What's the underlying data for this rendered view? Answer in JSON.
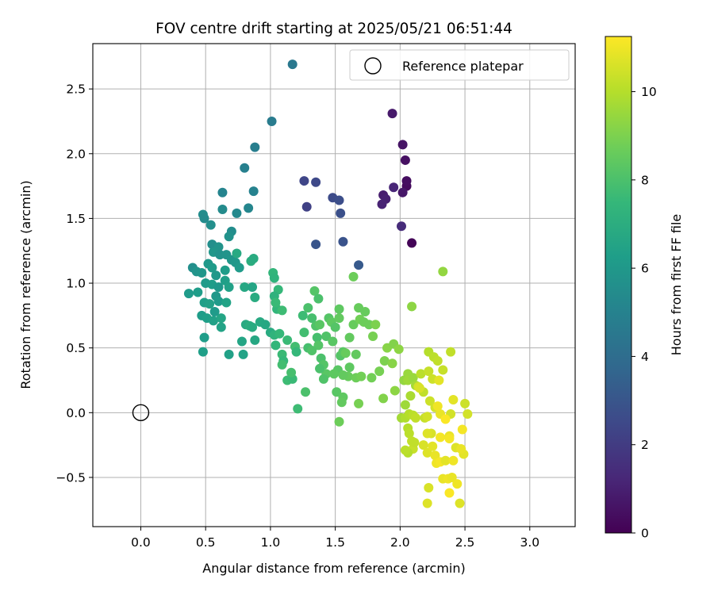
{
  "chart_data": {
    "type": "scatter",
    "title": "FOV centre drift starting at 2025/05/21 06:51:44",
    "xlabel": "Angular distance from reference (arcmin)",
    "ylabel": "Rotation from reference (arcmin)",
    "xlim": [
      -0.37,
      3.35
    ],
    "ylim": [
      -0.88,
      2.85
    ],
    "xticks": [
      0.0,
      0.5,
      1.0,
      1.5,
      2.0,
      2.5,
      3.0
    ],
    "xtick_labels": [
      "0.0",
      "0.5",
      "1.0",
      "1.5",
      "2.0",
      "2.5",
      "3.0"
    ],
    "yticks": [
      -0.5,
      0.0,
      0.5,
      1.0,
      1.5,
      2.0,
      2.5
    ],
    "ytick_labels": [
      "−0.5",
      "0.0",
      "0.5",
      "1.0",
      "1.5",
      "2.0",
      "2.5"
    ],
    "grid": true,
    "legend": {
      "placement": "top-right",
      "entries": [
        "Reference platepar"
      ]
    },
    "reference_point": {
      "x": 0.0,
      "y": 0.0,
      "label": "Reference platepar"
    },
    "colorbar": {
      "label": "Hours from first FF file",
      "range": [
        0,
        11.25
      ],
      "ticks": [
        0,
        2,
        4,
        6,
        8,
        10
      ],
      "tick_labels": [
        "0",
        "2",
        "4",
        "6",
        "8",
        "10"
      ],
      "colormap": "viridis"
    },
    "colormap_stops": [
      "#440154",
      "#482878",
      "#3e4989",
      "#31688e",
      "#26828e",
      "#1f9e89",
      "#35b779",
      "#6ece58",
      "#b5de2b",
      "#fde725"
    ],
    "points": [
      [
        2.09,
        1.31,
        0.1
      ],
      [
        2.05,
        1.75,
        0.3
      ],
      [
        2.05,
        1.79,
        0.4
      ],
      [
        2.04,
        1.95,
        0.5
      ],
      [
        2.02,
        2.07,
        0.6
      ],
      [
        2.02,
        1.7,
        0.7
      ],
      [
        1.94,
        2.31,
        0.8
      ],
      [
        1.87,
        1.68,
        0.9
      ],
      [
        1.89,
        1.65,
        1.0
      ],
      [
        1.86,
        1.61,
        1.1
      ],
      [
        1.95,
        1.74,
        1.2
      ],
      [
        2.01,
        1.44,
        1.4
      ],
      [
        1.28,
        1.59,
        2.2
      ],
      [
        1.26,
        1.79,
        2.4
      ],
      [
        1.35,
        1.78,
        2.5
      ],
      [
        1.48,
        1.66,
        2.6
      ],
      [
        1.53,
        1.64,
        2.7
      ],
      [
        1.54,
        1.54,
        2.8
      ],
      [
        1.56,
        1.32,
        2.9
      ],
      [
        1.35,
        1.3,
        3.0
      ],
      [
        1.68,
        1.14,
        3.2
      ],
      [
        1.17,
        2.69,
        4.5
      ],
      [
        1.01,
        2.25,
        4.7
      ],
      [
        0.88,
        2.05,
        4.8
      ],
      [
        0.8,
        1.89,
        4.9
      ],
      [
        0.87,
        1.71,
        5.0
      ],
      [
        0.63,
        1.7,
        5.1
      ],
      [
        0.83,
        1.58,
        5.2
      ],
      [
        0.74,
        1.54,
        5.3
      ],
      [
        0.63,
        1.57,
        5.4
      ],
      [
        0.48,
        1.53,
        5.5
      ],
      [
        0.49,
        1.5,
        5.4
      ],
      [
        0.54,
        1.45,
        5.6
      ],
      [
        0.7,
        1.4,
        5.5
      ],
      [
        0.68,
        1.36,
        5.7
      ],
      [
        0.55,
        1.3,
        5.6
      ],
      [
        0.6,
        1.28,
        5.8
      ],
      [
        0.56,
        1.24,
        5.9
      ],
      [
        0.61,
        1.22,
        5.7
      ],
      [
        0.66,
        1.22,
        5.8
      ],
      [
        0.4,
        1.12,
        5.6
      ],
      [
        0.43,
        1.09,
        5.8
      ],
      [
        0.47,
        1.08,
        5.9
      ],
      [
        0.52,
        1.15,
        6.0
      ],
      [
        0.55,
        1.12,
        6.1
      ],
      [
        0.7,
        1.18,
        5.9
      ],
      [
        0.73,
        1.16,
        6.0
      ],
      [
        0.76,
        1.12,
        6.1
      ],
      [
        0.65,
        1.1,
        6.2
      ],
      [
        0.58,
        1.06,
        6.0
      ],
      [
        0.5,
        1.0,
        6.1
      ],
      [
        0.55,
        0.99,
        6.2
      ],
      [
        0.6,
        0.97,
        6.0
      ],
      [
        0.65,
        1.02,
        6.3
      ],
      [
        0.68,
        0.97,
        6.4
      ],
      [
        0.44,
        0.93,
        6.2
      ],
      [
        0.37,
        0.92,
        6.1
      ],
      [
        0.49,
        0.85,
        6.3
      ],
      [
        0.53,
        0.84,
        6.4
      ],
      [
        0.58,
        0.9,
        6.0
      ],
      [
        0.6,
        0.86,
        6.1
      ],
      [
        0.66,
        0.85,
        6.5
      ],
      [
        0.47,
        0.75,
        6.2
      ],
      [
        0.51,
        0.73,
        6.3
      ],
      [
        0.56,
        0.71,
        6.4
      ],
      [
        0.62,
        0.73,
        6.6
      ],
      [
        0.57,
        0.78,
        6.1
      ],
      [
        0.62,
        0.66,
        6.5
      ],
      [
        0.49,
        0.58,
        6.2
      ],
      [
        0.48,
        0.47,
        6.3
      ],
      [
        0.68,
        0.45,
        6.4
      ],
      [
        0.79,
        0.45,
        6.5
      ],
      [
        0.78,
        0.55,
        6.6
      ],
      [
        0.74,
        1.23,
        6.8
      ],
      [
        0.85,
        1.17,
        7.0
      ],
      [
        0.87,
        1.19,
        6.9
      ],
      [
        0.8,
        0.97,
        6.7
      ],
      [
        0.86,
        0.97,
        6.6
      ],
      [
        0.88,
        0.89,
        6.9
      ],
      [
        0.81,
        0.68,
        6.8
      ],
      [
        0.84,
        0.67,
        7.0
      ],
      [
        0.86,
        0.66,
        6.9
      ],
      [
        0.92,
        0.7,
        6.8
      ],
      [
        0.96,
        0.68,
        6.7
      ],
      [
        0.88,
        0.56,
        6.7
      ],
      [
        1.0,
        0.62,
        6.9
      ],
      [
        1.02,
        1.08,
        7.4
      ],
      [
        1.03,
        1.04,
        7.3
      ],
      [
        1.06,
        0.95,
        7.5
      ],
      [
        1.03,
        0.9,
        7.2
      ],
      [
        1.05,
        0.8,
        7.4
      ],
      [
        1.04,
        0.85,
        7.6
      ],
      [
        1.09,
        0.79,
        7.7
      ],
      [
        1.03,
        0.6,
        7.3
      ],
      [
        1.07,
        0.61,
        7.5
      ],
      [
        1.04,
        0.52,
        7.4
      ],
      [
        1.09,
        0.45,
        7.6
      ],
      [
        1.1,
        0.4,
        7.5
      ],
      [
        1.09,
        0.37,
        7.8
      ],
      [
        1.13,
        0.25,
        7.7
      ],
      [
        1.17,
        0.26,
        7.6
      ],
      [
        1.16,
        0.31,
        7.9
      ],
      [
        1.13,
        0.56,
        7.6
      ],
      [
        1.19,
        0.51,
        7.8
      ],
      [
        1.2,
        0.47,
        7.5
      ],
      [
        1.21,
        0.03,
        7.7
      ],
      [
        1.25,
        0.75,
        7.7
      ],
      [
        1.26,
        0.62,
        7.8
      ],
      [
        1.29,
        0.5,
        7.9
      ],
      [
        1.27,
        0.16,
        8.0
      ],
      [
        1.29,
        0.81,
        8.0
      ],
      [
        1.32,
        0.73,
        7.9
      ],
      [
        1.35,
        0.67,
        8.1
      ],
      [
        1.34,
        0.94,
        8.2
      ],
      [
        1.37,
        0.88,
        8.0
      ],
      [
        1.38,
        0.68,
        8.3
      ],
      [
        1.36,
        0.58,
        7.9
      ],
      [
        1.37,
        0.52,
        8.2
      ],
      [
        1.32,
        0.48,
        8.1
      ],
      [
        1.39,
        0.42,
        8.0
      ],
      [
        1.41,
        0.37,
        8.2
      ],
      [
        1.43,
        0.3,
        8.3
      ],
      [
        1.41,
        0.26,
        8.1
      ],
      [
        1.38,
        0.34,
        8.0
      ],
      [
        1.45,
        0.73,
        8.2
      ],
      [
        1.47,
        0.7,
        8.4
      ],
      [
        1.43,
        0.59,
        8.1
      ],
      [
        1.48,
        0.55,
        8.3
      ],
      [
        1.5,
        0.66,
        8.2
      ],
      [
        1.53,
        0.8,
        8.4
      ],
      [
        1.53,
        0.73,
        8.5
      ],
      [
        1.54,
        0.44,
        8.2
      ],
      [
        1.52,
        0.33,
        8.3
      ],
      [
        1.49,
        0.3,
        8.4
      ],
      [
        1.51,
        0.16,
        8.3
      ],
      [
        1.56,
        0.12,
        8.4
      ],
      [
        1.55,
        0.08,
        8.5
      ],
      [
        1.56,
        0.47,
        8.3
      ],
      [
        1.58,
        0.46,
        8.6
      ],
      [
        1.61,
        0.58,
        8.5
      ],
      [
        1.61,
        0.35,
        8.4
      ],
      [
        1.6,
        0.28,
        8.6
      ],
      [
        1.56,
        0.29,
        8.5
      ],
      [
        1.64,
        1.05,
        8.7
      ],
      [
        1.64,
        0.68,
        8.6
      ],
      [
        1.66,
        0.45,
        8.5
      ],
      [
        1.66,
        0.27,
        8.7
      ],
      [
        1.68,
        0.81,
        8.6
      ],
      [
        1.69,
        0.72,
        8.8
      ],
      [
        1.72,
        0.7,
        8.7
      ],
      [
        1.73,
        0.78,
        8.6
      ],
      [
        1.76,
        0.68,
        8.7
      ],
      [
        1.7,
        0.28,
        8.8
      ],
      [
        1.68,
        0.07,
        8.9
      ],
      [
        1.53,
        -0.07,
        8.7
      ],
      [
        1.79,
        0.59,
        8.9
      ],
      [
        1.81,
        0.68,
        9.0
      ],
      [
        1.78,
        0.27,
        8.8
      ],
      [
        1.84,
        0.32,
        8.9
      ],
      [
        1.88,
        0.4,
        9.0
      ],
      [
        1.87,
        0.11,
        9.1
      ],
      [
        1.9,
        0.5,
        9.2
      ],
      [
        1.95,
        0.53,
        9.1
      ],
      [
        1.94,
        0.38,
        9.2
      ],
      [
        1.96,
        0.17,
        9.3
      ],
      [
        2.09,
        0.82,
        9.3
      ],
      [
        2.33,
        1.09,
        9.4
      ],
      [
        1.99,
        0.49,
        9.3
      ],
      [
        2.06,
        0.3,
        9.5
      ],
      [
        2.03,
        0.25,
        9.4
      ],
      [
        2.06,
        0.25,
        9.6
      ],
      [
        2.1,
        0.27,
        9.5
      ],
      [
        2.12,
        0.21,
        9.7
      ],
      [
        2.08,
        0.13,
        9.8
      ],
      [
        2.04,
        0.06,
        9.6
      ],
      [
        2.01,
        -0.04,
        9.7
      ],
      [
        2.04,
        -0.04,
        9.9
      ],
      [
        2.07,
        -0.01,
        10.0
      ],
      [
        2.1,
        -0.02,
        10.1
      ],
      [
        2.12,
        -0.04,
        10.2
      ],
      [
        2.06,
        -0.12,
        10.0
      ],
      [
        2.07,
        -0.16,
        10.1
      ],
      [
        2.09,
        -0.22,
        10.2
      ],
      [
        2.1,
        -0.28,
        10.3
      ],
      [
        2.06,
        -0.31,
        10.0
      ],
      [
        2.04,
        -0.29,
        10.1
      ],
      [
        2.11,
        -0.23,
        10.2
      ],
      [
        2.16,
        0.3,
        10.1
      ],
      [
        2.18,
        0.16,
        10.2
      ],
      [
        2.14,
        0.2,
        10.5
      ],
      [
        2.15,
        0.19,
        10.6
      ],
      [
        2.19,
        -0.04,
        10.3
      ],
      [
        2.22,
        0.47,
        10.0
      ],
      [
        2.26,
        0.43,
        10.1
      ],
      [
        2.29,
        0.4,
        10.2
      ],
      [
        2.22,
        0.32,
        10.3
      ],
      [
        2.25,
        0.26,
        10.4
      ],
      [
        2.33,
        0.33,
        10.3
      ],
      [
        2.23,
        0.09,
        10.4
      ],
      [
        2.27,
        0.04,
        10.5
      ],
      [
        2.21,
        -0.03,
        10.5
      ],
      [
        2.24,
        -0.16,
        10.6
      ],
      [
        2.21,
        -0.16,
        10.7
      ],
      [
        2.18,
        -0.25,
        10.6
      ],
      [
        2.21,
        -0.31,
        10.7
      ],
      [
        2.25,
        -0.26,
        10.8
      ],
      [
        2.22,
        -0.58,
        10.6
      ],
      [
        2.21,
        -0.7,
        10.7
      ],
      [
        2.3,
        0.25,
        10.8
      ],
      [
        2.31,
        -0.01,
        10.9
      ],
      [
        2.29,
        0.05,
        11.0
      ],
      [
        2.31,
        -0.19,
        11.1
      ],
      [
        2.27,
        -0.33,
        10.9
      ],
      [
        2.28,
        -0.39,
        11.0
      ],
      [
        2.31,
        -0.38,
        11.1
      ],
      [
        2.35,
        -0.37,
        10.8
      ],
      [
        2.33,
        -0.51,
        10.9
      ],
      [
        2.37,
        -0.51,
        11.0
      ],
      [
        2.38,
        -0.62,
        11.2
      ],
      [
        2.4,
        -0.5,
        10.9
      ],
      [
        2.39,
        0.47,
        10.2
      ],
      [
        2.39,
        -0.01,
        10.5
      ],
      [
        2.41,
        0.1,
        10.8
      ],
      [
        2.38,
        -0.18,
        10.9
      ],
      [
        2.43,
        -0.27,
        10.7
      ],
      [
        2.41,
        -0.37,
        11.0
      ],
      [
        2.44,
        -0.55,
        11.0
      ],
      [
        2.46,
        -0.7,
        10.7
      ],
      [
        2.48,
        -0.13,
        11.1
      ],
      [
        2.49,
        -0.32,
        10.8
      ],
      [
        2.5,
        0.07,
        10.4
      ],
      [
        2.52,
        -0.01,
        10.5
      ],
      [
        2.47,
        -0.28,
        10.9
      ],
      [
        2.38,
        -0.2,
        11.1
      ],
      [
        2.35,
        -0.05,
        11.2
      ]
    ]
  }
}
